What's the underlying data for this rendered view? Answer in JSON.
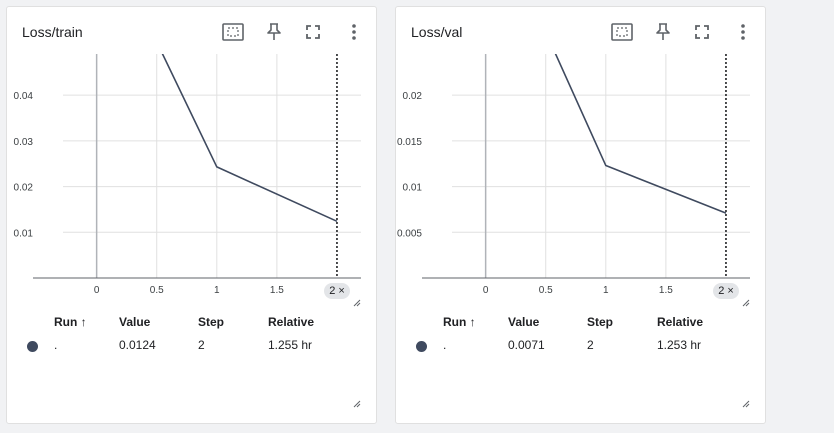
{
  "colors": {
    "line": "#3f4a5f",
    "grid": "#e0e0e0",
    "axis": "#5f6368",
    "run_dot": "#3f4a5f"
  },
  "toolbar_icons": [
    "fit-domain-icon",
    "pin-icon",
    "fullscreen-icon",
    "more-vert-icon"
  ],
  "cards": [
    {
      "title": "Loss/train",
      "x_badge": "2 ×",
      "table": {
        "headers": {
          "run": "Run ↑",
          "value": "Value",
          "step": "Step",
          "relative": "Relative"
        },
        "rows": [
          {
            "run": ".",
            "value": "0.0124",
            "step": "2",
            "relative": "1.255 hr"
          }
        ]
      }
    },
    {
      "title": "Loss/val",
      "x_badge": "2 ×",
      "table": {
        "headers": {
          "run": "Run ↑",
          "value": "Value",
          "step": "Step",
          "relative": "Relative"
        },
        "rows": [
          {
            "run": ".",
            "value": "0.0071",
            "step": "2",
            "relative": "1.253 hr"
          }
        ]
      }
    }
  ],
  "chart_data": [
    {
      "type": "line",
      "title": "Loss/train",
      "x_ticks": [
        "0",
        "0.5",
        "1",
        "1.5"
      ],
      "y_ticks": [
        "0.01",
        "0.02",
        "0.03",
        "0.04"
      ],
      "xlim": [
        -0.28,
        2.2
      ],
      "ylim": [
        0,
        0.049
      ],
      "cursor_x": 2,
      "series": [
        {
          "x": [
            0,
            1,
            2
          ],
          "y": [
            0.079,
            0.0243,
            0.0124
          ]
        }
      ]
    },
    {
      "type": "line",
      "title": "Loss/val",
      "x_ticks": [
        "0",
        "0.5",
        "1",
        "1.5"
      ],
      "y_ticks": [
        "0.005",
        "0.01",
        "0.015",
        "0.02"
      ],
      "xlim": [
        -0.28,
        2.2
      ],
      "ylim": [
        0,
        0.0245
      ],
      "cursor_x": 2,
      "series": [
        {
          "x": [
            0,
            1,
            2
          ],
          "y": [
            0.0415,
            0.0123,
            0.0071
          ]
        }
      ]
    }
  ]
}
